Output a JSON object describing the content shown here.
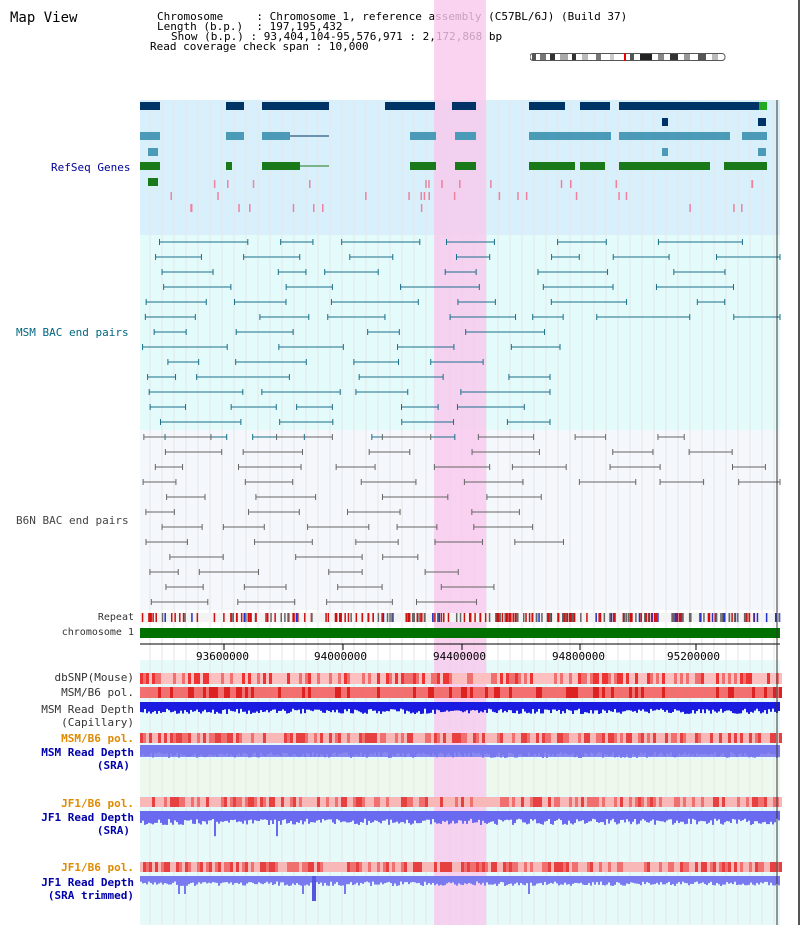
{
  "app_title": "Map View",
  "info": {
    "chromosome_label": "Chromosome",
    "chromosome_value": "Chromosome 1, reference assembly (C57BL/6J) (Build 37)",
    "length_label": "Length (b.p.)",
    "length_value": "197,195,432",
    "show_label": "Show (b.p.)",
    "show_value": "93,404,104-95,576,971 : 2,172,868 bp",
    "coverage_label": "Read coverage check span",
    "coverage_value": "10,000"
  },
  "tracks": {
    "refseq": "RefSeq Genes",
    "msm_bac": "MSM BAC end pairs",
    "b6n_bac": "B6N BAC end pairs",
    "repeat": "Repeat",
    "chromosome": "chromosome 1",
    "dbsnp": "dbSNP(Mouse)",
    "msm_b6_pol1": "MSM/B6 pol.",
    "msm_depth_cap_1": "MSM Read Depth",
    "msm_depth_cap_2": "(Capillary)",
    "msm_b6_pol2": "MSM/B6 pol.",
    "msm_depth_sra_1": "MSM Read Depth",
    "msm_depth_sra_2": "(SRA)",
    "jf1_b6_pol1": "JF1/B6 pol.",
    "jf1_depth_sra_1": "JF1 Read Depth",
    "jf1_depth_sra_2": "(SRA)",
    "jf1_b6_pol2": "JF1/B6 pol.",
    "jf1_depth_trim_1": "JF1 Read Depth",
    "jf1_depth_trim_2": "(SRA trimmed)"
  },
  "axis": {
    "ticks": [
      "93600000",
      "94000000",
      "94400000",
      "94800000",
      "95200000"
    ]
  },
  "colors": {
    "refseq_bg": "#d8f0fb",
    "msm_bg": "#e4fbfb",
    "b6n_bg": "#f4f7fb",
    "highlight": "#f9c8ee",
    "gene_dark": "#003366",
    "gene_mid": "#4a9ab8",
    "gene_green": "#1a7a1a",
    "bac_teal": "#1a6f8a",
    "bac_gray": "#666666",
    "chrom_green": "#007000"
  }
}
